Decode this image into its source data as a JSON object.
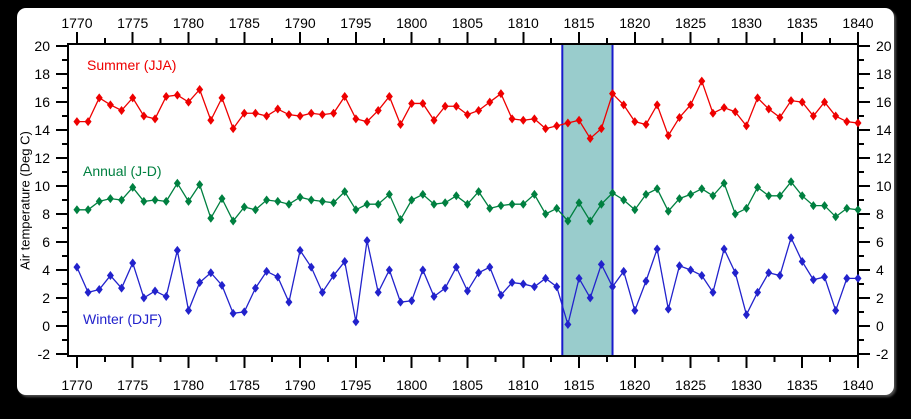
{
  "chart_data": {
    "type": "line",
    "title": "",
    "ylabel": "Air temperature (Deg C)",
    "xlabel": "",
    "x_start": 1770,
    "x_step": 1,
    "xlim": [
      1769.2,
      1840.0
    ],
    "ylim": [
      -2.15,
      20.15
    ],
    "x_major_ticks": [
      1770,
      1775,
      1780,
      1785,
      1790,
      1795,
      1800,
      1805,
      1810,
      1815,
      1820,
      1825,
      1830,
      1835,
      1840
    ],
    "y_major_ticks": [
      -2,
      0,
      2,
      4,
      6,
      8,
      10,
      12,
      14,
      16,
      18,
      20
    ],
    "y_minor_ticks": [
      -1,
      1,
      3,
      5,
      7,
      9,
      11,
      13,
      15,
      17,
      19
    ],
    "grid": false,
    "legend_position": "inline-labels",
    "axis_color": "#000000",
    "background": "#ffffff",
    "outer_background": "#000000",
    "highlight_band": {
      "x_from": 1813.5,
      "x_to": 1818.0,
      "fill": "#99cccc",
      "stroke": "#1a1acc"
    },
    "series": [
      {
        "id": "summer",
        "name": "Summer (JJA)",
        "color": "#ee0000",
        "values": [
          14.6,
          14.6,
          16.3,
          15.8,
          15.4,
          16.3,
          15.0,
          14.8,
          16.4,
          16.5,
          16.0,
          16.9,
          14.7,
          16.3,
          14.1,
          15.2,
          15.2,
          15.0,
          15.5,
          15.1,
          15.0,
          15.2,
          15.1,
          15.2,
          16.4,
          14.8,
          14.6,
          15.4,
          16.4,
          14.4,
          15.9,
          15.9,
          14.7,
          15.7,
          15.7,
          15.1,
          15.4,
          16.0,
          16.6,
          14.8,
          14.7,
          14.8,
          14.1,
          14.3,
          14.5,
          14.7,
          13.4,
          14.1,
          16.6,
          15.8,
          14.6,
          14.4,
          15.8,
          13.6,
          14.9,
          15.8,
          17.5,
          15.2,
          15.6,
          15.3,
          14.3,
          16.3,
          15.5,
          14.9,
          16.1,
          16.0,
          15.0,
          16.0,
          15.0,
          14.6,
          14.5
        ]
      },
      {
        "id": "annual",
        "name": "Annual (J-D)",
        "color": "#008040",
        "values": [
          8.3,
          8.3,
          8.9,
          9.1,
          9.0,
          9.9,
          8.9,
          9.0,
          8.9,
          10.2,
          8.9,
          10.1,
          7.7,
          9.1,
          7.5,
          8.5,
          8.3,
          9.0,
          8.9,
          8.7,
          9.2,
          9.0,
          8.9,
          8.8,
          9.6,
          8.3,
          8.7,
          8.7,
          9.4,
          7.6,
          9.0,
          9.4,
          8.7,
          8.8,
          9.3,
          8.7,
          9.6,
          8.4,
          8.6,
          8.7,
          8.7,
          9.4,
          8.0,
          8.4,
          7.5,
          8.8,
          7.5,
          8.7,
          9.5,
          9.0,
          8.3,
          9.4,
          9.8,
          8.2,
          9.1,
          9.4,
          9.8,
          9.3,
          10.2,
          8.0,
          8.4,
          9.9,
          9.3,
          9.3,
          10.3,
          9.3,
          8.6,
          8.6,
          7.8,
          8.4,
          8.3
        ]
      },
      {
        "id": "winter",
        "name": "Winter (DJF)",
        "color": "#2222cc",
        "values": [
          4.2,
          2.4,
          2.6,
          3.6,
          2.7,
          4.5,
          2.0,
          2.5,
          2.1,
          5.4,
          1.1,
          3.1,
          3.8,
          2.9,
          0.9,
          1.0,
          2.7,
          3.9,
          3.5,
          1.7,
          5.4,
          4.2,
          2.4,
          3.6,
          4.6,
          0.3,
          6.1,
          2.4,
          4.0,
          1.7,
          1.8,
          4.0,
          2.1,
          2.7,
          4.2,
          2.5,
          3.8,
          4.2,
          2.2,
          3.1,
          3.0,
          2.8,
          3.4,
          2.8,
          0.1,
          3.4,
          2.0,
          4.4,
          2.8,
          3.9,
          1.1,
          3.2,
          5.5,
          1.2,
          4.3,
          4.0,
          3.6,
          2.4,
          5.5,
          3.8,
          0.8,
          2.4,
          3.8,
          3.6,
          6.3,
          4.6,
          3.3,
          3.5,
          1.1,
          3.4,
          3.4
        ]
      }
    ]
  }
}
